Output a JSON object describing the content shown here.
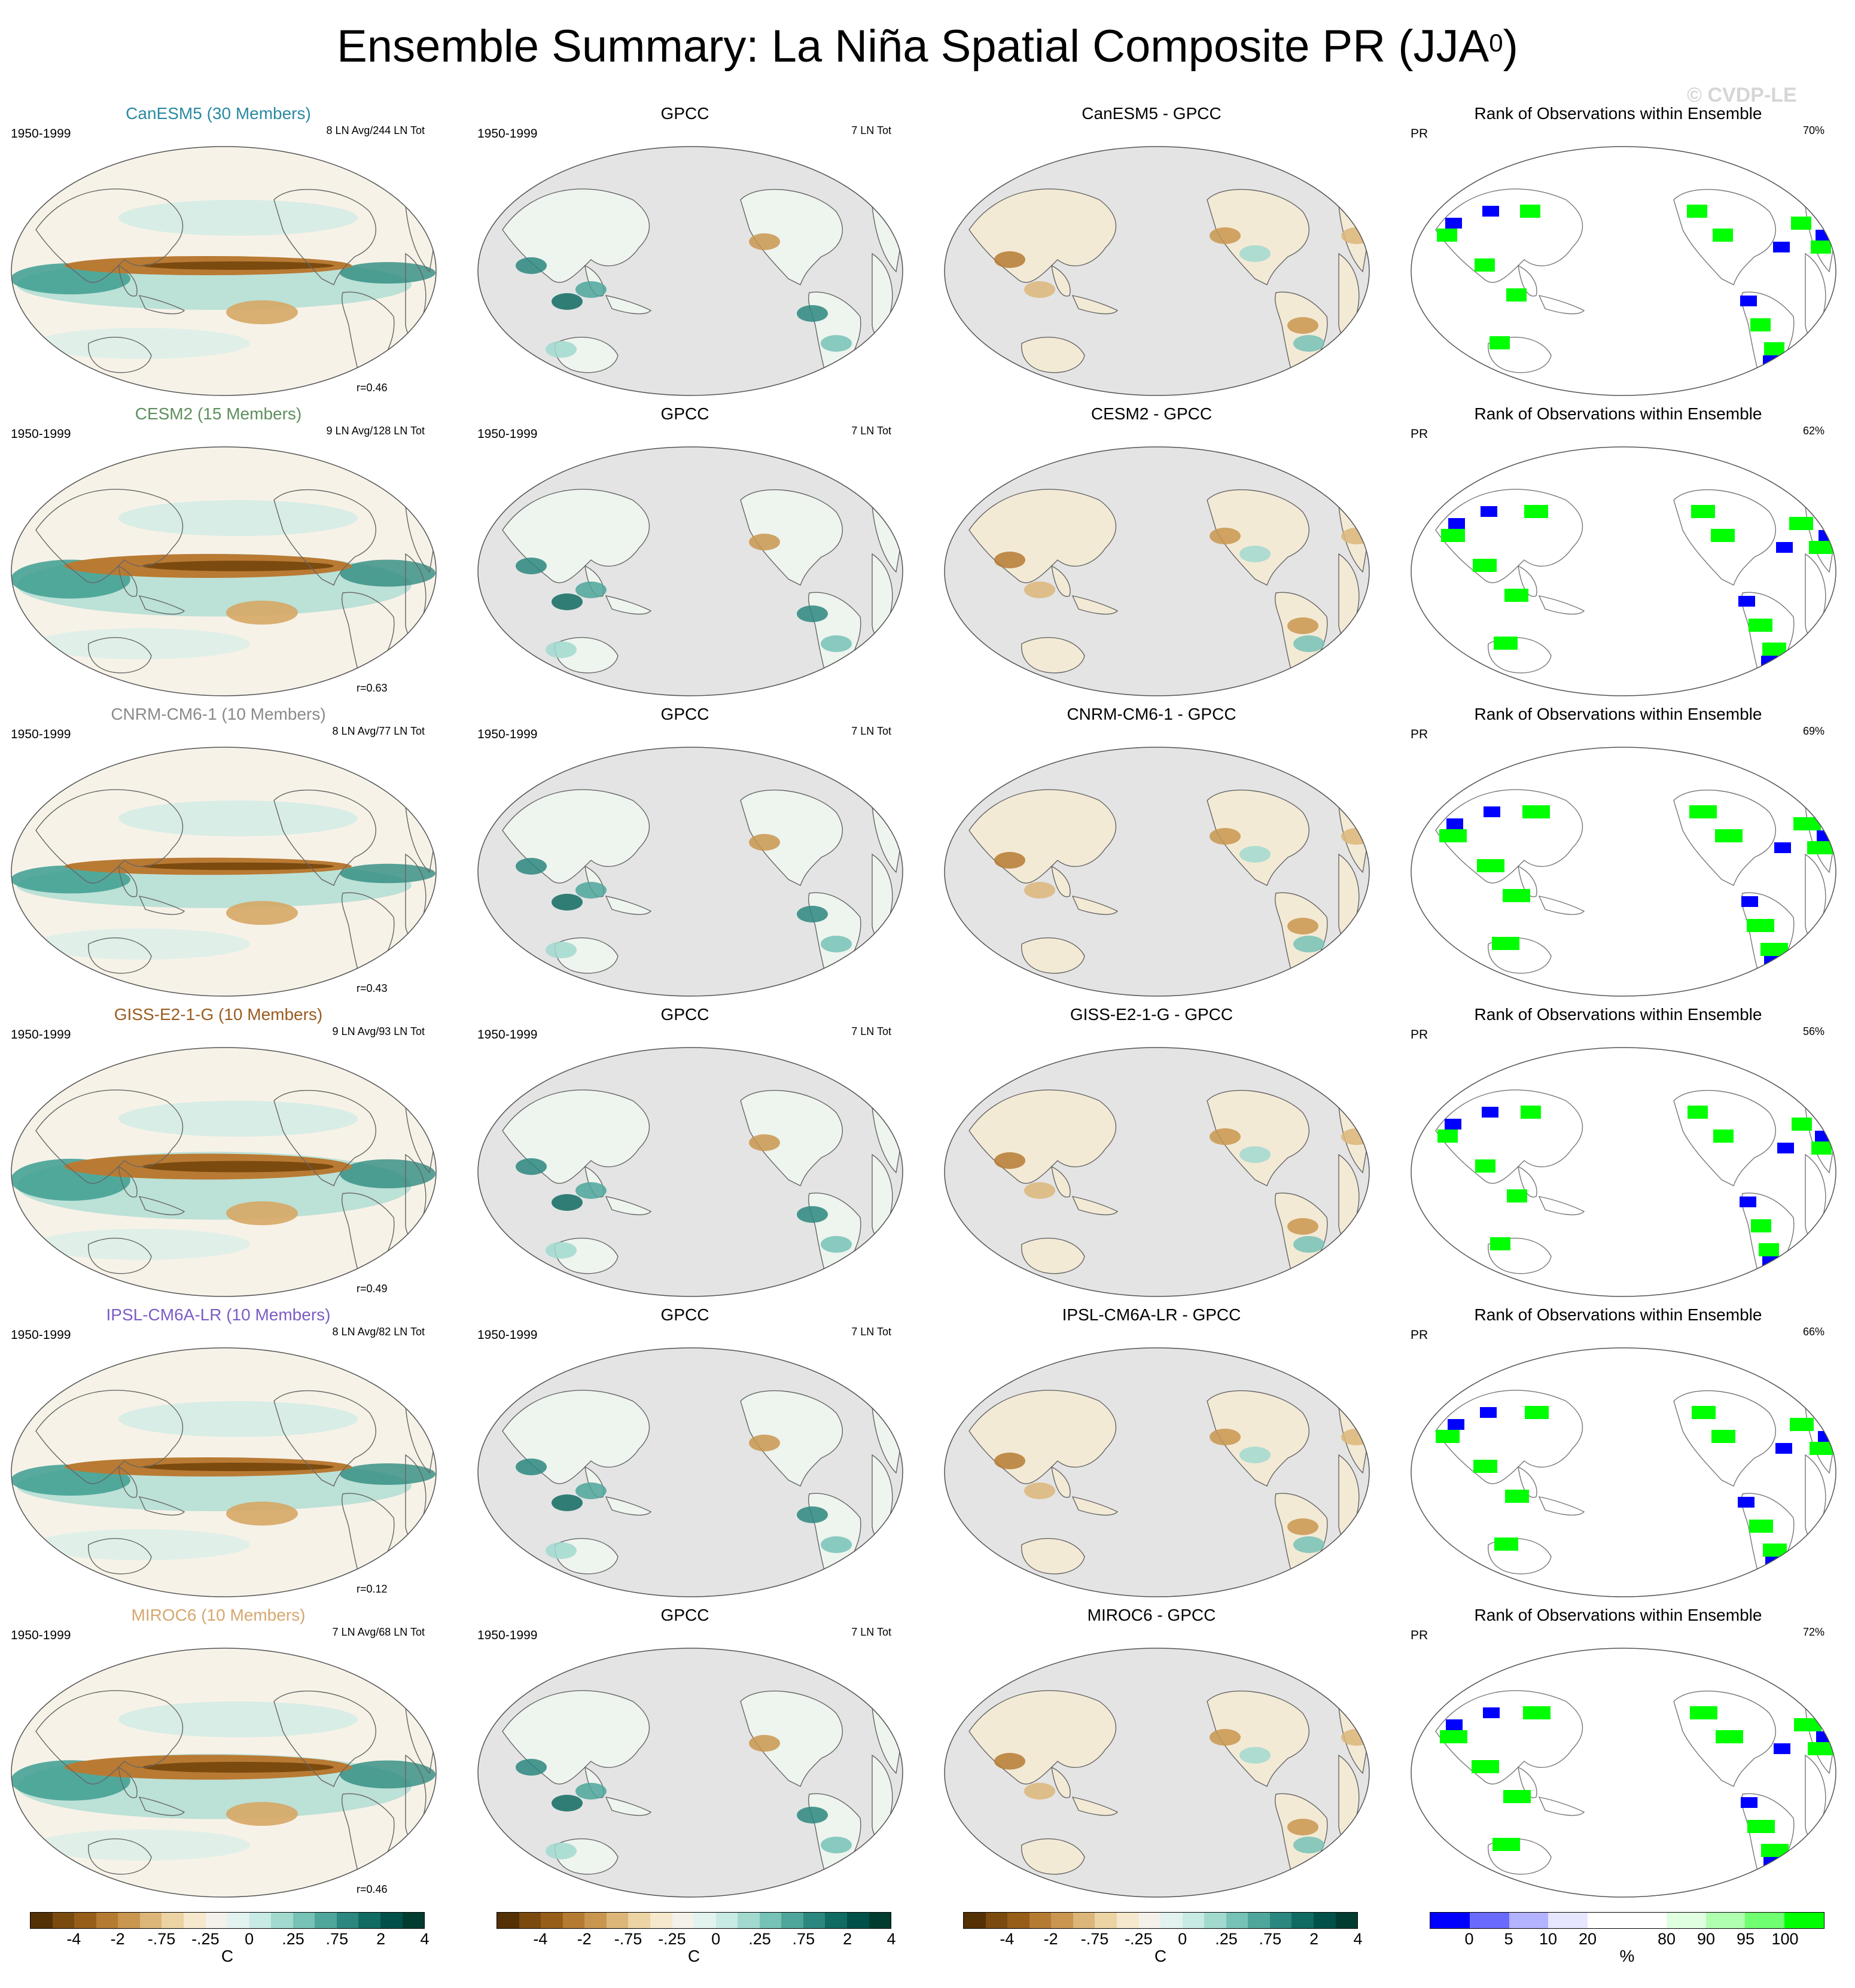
{
  "title_main": "Ensemble Summary: La Niña Spatial Composite PR (JJA",
  "title_sup": "0",
  "title_close": ")",
  "watermark": "© CVDP-LE",
  "period": "1950-1999",
  "var_label": "PR",
  "obs_title": "GPCC",
  "obs_count": "7 LN Tot",
  "rank_title": "Rank of Observations within Ensemble",
  "rows": [
    {
      "model": "CanESM5 (30 Members)",
      "color": "#2a8aa0",
      "events": "8 LN Avg/244 LN Tot",
      "corr": "r=0.46",
      "diff": "CanESM5 - GPCC",
      "rank_pct": "70%"
    },
    {
      "model": "CESM2 (15 Members)",
      "color": "#5d8f5d",
      "events": "9 LN Avg/128 LN Tot",
      "corr": "r=0.63",
      "diff": "CESM2 - GPCC",
      "rank_pct": "62%"
    },
    {
      "model": "CNRM-CM6-1 (10 Members)",
      "color": "#8a8a8a",
      "events": "8 LN Avg/77 LN Tot",
      "corr": "r=0.43",
      "diff": "CNRM-CM6-1 - GPCC",
      "rank_pct": "69%"
    },
    {
      "model": "GISS-E2-1-G (10 Members)",
      "color": "#9a5b20",
      "events": "9 LN Avg/93 LN Tot",
      "corr": "r=0.49",
      "diff": "GISS-E2-1-G - GPCC",
      "rank_pct": "56%"
    },
    {
      "model": "IPSL-CM6A-LR (10 Members)",
      "color": "#7c5cc4",
      "events": "8 LN Avg/82 LN Tot",
      "corr": "r=0.12",
      "diff": "IPSL-CM6A-LR - GPCC",
      "rank_pct": "66%"
    },
    {
      "model": "MIROC6 (10 Members)",
      "color": "#d6a870",
      "events": "7 LN Avg/68 LN Tot",
      "corr": "r=0.46",
      "diff": "MIROC6 - GPCC",
      "rank_pct": "72%"
    }
  ],
  "colorbar_pr": {
    "colors": [
      "#543005",
      "#7a4a0e",
      "#965e18",
      "#b57b32",
      "#c9964f",
      "#dcb679",
      "#ebd3a4",
      "#f5e8cc",
      "#f4f1ea",
      "#e2f2ef",
      "#c7eae4",
      "#a1d9cf",
      "#76c2b6",
      "#4ea69b",
      "#2b877f",
      "#106b63",
      "#00514a",
      "#003c30"
    ],
    "labels": [
      "-4",
      "-2",
      "-.75",
      "-.25",
      "0",
      ".25",
      ".75",
      "2",
      "4"
    ],
    "unit": "C"
  },
  "colorbar_rank": {
    "colors": [
      "#0000ff",
      "#6a6aff",
      "#b3b3ff",
      "#e6e6ff",
      "#ffffff",
      "#ffffff",
      "#e0ffe0",
      "#b0ffb0",
      "#70ff70",
      "#00ff00"
    ],
    "labels": [
      "0",
      "5",
      "10",
      "20",
      "80",
      "90",
      "95",
      "100"
    ],
    "unit": "%"
  }
}
